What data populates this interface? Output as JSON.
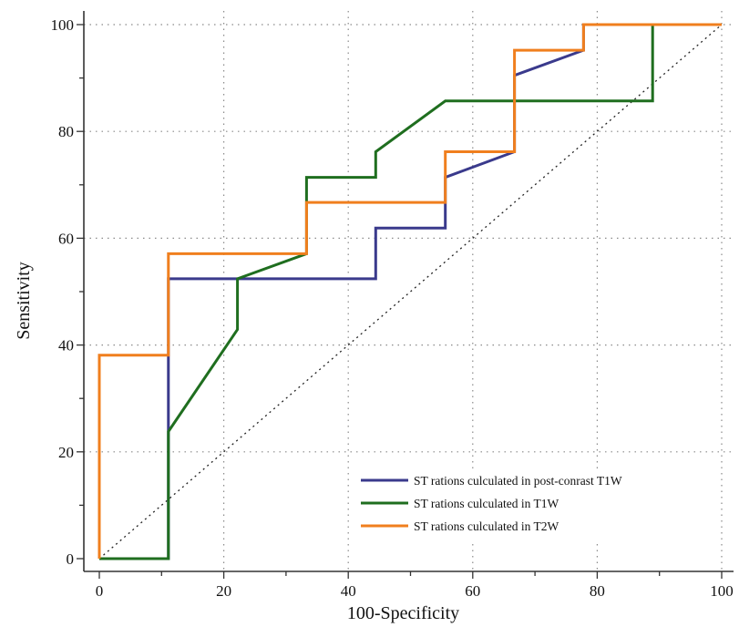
{
  "chart_data": {
    "type": "line",
    "xlabel": "100-Specificity",
    "ylabel": "Sensitivity",
    "xlim": [
      0,
      100
    ],
    "ylim": [
      0,
      100
    ],
    "x_ticks": [
      0,
      20,
      40,
      60,
      80,
      100
    ],
    "y_ticks": [
      0,
      20,
      40,
      60,
      80,
      100
    ],
    "grid": "dotted",
    "legend_position": "bottom-right",
    "reference_line": {
      "style": "dotted",
      "points": [
        [
          0,
          0
        ],
        [
          100,
          100
        ]
      ]
    },
    "series": [
      {
        "name": "ST rations culculated in post-conrast T1W",
        "color": "#3a3a8c",
        "points": [
          [
            0,
            0
          ],
          [
            11.1,
            0
          ],
          [
            11.1,
            23.8
          ],
          [
            11.1,
            52.4
          ],
          [
            44.4,
            52.4
          ],
          [
            44.4,
            61.9
          ],
          [
            55.6,
            61.9
          ],
          [
            55.6,
            71.4
          ],
          [
            66.7,
            76.2
          ],
          [
            66.7,
            90.5
          ],
          [
            77.8,
            95.2
          ],
          [
            77.8,
            100
          ],
          [
            100,
            100
          ]
        ]
      },
      {
        "name": "ST rations culculated in  T1W",
        "color": "#1f6e1f",
        "points": [
          [
            0,
            0
          ],
          [
            11.1,
            0
          ],
          [
            11.1,
            23.8
          ],
          [
            22.2,
            42.9
          ],
          [
            22.2,
            52.4
          ],
          [
            33.3,
            57.1
          ],
          [
            33.3,
            71.4
          ],
          [
            44.4,
            71.4
          ],
          [
            44.4,
            76.2
          ],
          [
            55.6,
            85.7
          ],
          [
            88.9,
            85.7
          ],
          [
            88.9,
            100
          ],
          [
            100,
            100
          ]
        ]
      },
      {
        "name": "ST rations culculated in  T2W",
        "color": "#f07f1e",
        "points": [
          [
            0,
            0
          ],
          [
            0,
            38.1
          ],
          [
            11.1,
            38.1
          ],
          [
            11.1,
            57.1
          ],
          [
            33.3,
            57.1
          ],
          [
            33.3,
            66.7
          ],
          [
            55.6,
            66.7
          ],
          [
            55.6,
            76.2
          ],
          [
            66.7,
            76.2
          ],
          [
            66.7,
            95.2
          ],
          [
            77.8,
            95.2
          ],
          [
            77.8,
            100
          ],
          [
            100,
            100
          ]
        ]
      }
    ]
  }
}
